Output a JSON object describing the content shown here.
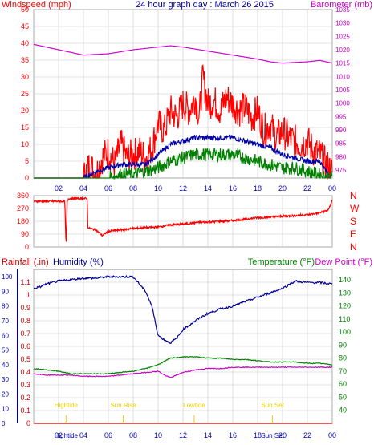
{
  "header": {
    "left_label": "Windspeed (mph)",
    "title": "24 hour graph day : March 26 2015",
    "right_label": "Barometer (mb)"
  },
  "colors": {
    "wind": "#ff0000",
    "wind_avg": "#0000aa",
    "wind_low": "#008000",
    "barometer": "#cc00cc",
    "rain": "#cc0000",
    "humidity": "#000099",
    "temperature": "#008000",
    "dew_point": "#cc00cc",
    "tide": "#e8d000",
    "axis_time": "#0000aa",
    "grid": "#c8c8c8"
  },
  "chart_data": [
    {
      "type": "line",
      "name": "wind-and-barometer",
      "x_ticks": [
        "02",
        "04",
        "06",
        "08",
        "10",
        "12",
        "14",
        "16",
        "18",
        "20",
        "22",
        "00"
      ],
      "y_left": {
        "label": "Windspeed (mph)",
        "range": [
          0,
          50
        ],
        "ticks": [
          "0",
          "5",
          "10",
          "15",
          "20",
          "25",
          "30",
          "35",
          "40",
          "45",
          "50"
        ]
      },
      "y_right": {
        "label": "Barometer (mb)",
        "range": [
          972,
          1035
        ],
        "ticks": [
          "975",
          "980",
          "985",
          "990",
          "995",
          "1000",
          "1005",
          "1010",
          "1015",
          "1020",
          "1025",
          "1030",
          "1035"
        ]
      },
      "series": [
        {
          "role": "barometer",
          "axis": "right",
          "x": [
            0,
            2,
            4,
            6,
            8,
            10,
            11,
            12,
            14,
            16,
            18,
            19,
            20,
            22,
            23,
            24
          ],
          "y": [
            1022,
            1020,
            1018,
            1018.5,
            1020,
            1021,
            1021.5,
            1021,
            1019.5,
            1018,
            1016.5,
            1015.5,
            1015,
            1015.5,
            1016,
            1015
          ]
        },
        {
          "role": "gust",
          "axis": "left",
          "x": [
            0,
            3,
            4,
            4.5,
            5,
            5.5,
            6,
            6.5,
            7,
            7.5,
            8,
            8.5,
            9,
            9.5,
            10,
            10.5,
            11,
            11.5,
            12,
            12.5,
            13,
            13.3,
            13.6,
            14,
            14.5,
            15,
            15.5,
            16,
            16.5,
            17,
            17.5,
            18,
            18.5,
            19,
            19.5,
            20,
            20.5,
            21,
            21.5,
            22,
            22.5,
            23,
            23.5,
            24
          ],
          "y": [
            0,
            0,
            0,
            4,
            1,
            6,
            8,
            4,
            10,
            6,
            7,
            8,
            6,
            9,
            16,
            14,
            20,
            18,
            22,
            20,
            24,
            18,
            30,
            22,
            23,
            20,
            24,
            22,
            20,
            21,
            18,
            20,
            14,
            16,
            12,
            14,
            12,
            11,
            10,
            11,
            8,
            7,
            4,
            2
          ]
        },
        {
          "role": "average",
          "axis": "left",
          "x": [
            0,
            4,
            4.5,
            5,
            6,
            7,
            8,
            9,
            10,
            11,
            12,
            13,
            14,
            15,
            16,
            17,
            18,
            19,
            20,
            21,
            22,
            23,
            23.5,
            24
          ],
          "y": [
            0,
            0,
            1,
            2,
            3,
            4,
            4,
            4,
            7,
            10,
            11,
            12,
            12,
            12,
            12,
            11,
            10,
            9,
            7,
            6,
            5,
            5,
            2,
            0
          ]
        },
        {
          "role": "low",
          "axis": "left",
          "x": [
            0,
            6,
            7,
            8,
            9,
            10,
            11,
            12,
            13,
            14,
            15,
            16,
            17,
            18,
            19,
            20,
            21,
            22,
            23,
            24
          ],
          "y": [
            0,
            0,
            1,
            1,
            2,
            3,
            5,
            6,
            7,
            7,
            7,
            7,
            6,
            5,
            4,
            3,
            3,
            2,
            1,
            0
          ]
        }
      ]
    },
    {
      "type": "line",
      "name": "wind-direction",
      "x_ticks": [
        "02",
        "04",
        "06",
        "08",
        "10",
        "12",
        "14",
        "16",
        "18",
        "20",
        "22",
        "00"
      ],
      "y_left": {
        "range": [
          0,
          360
        ],
        "ticks": [
          "0",
          "90",
          "180",
          "270",
          "360"
        ]
      },
      "y_right_labels": [
        "N",
        "W",
        "S",
        "E",
        "N"
      ],
      "series": [
        {
          "role": "direction",
          "x": [
            0,
            2.5,
            2.6,
            2.7,
            2.8,
            4.3,
            4.35,
            4.5,
            5,
            5.5,
            6,
            7,
            8,
            9,
            10,
            11,
            12,
            13,
            14,
            15,
            16,
            17,
            18,
            19,
            20,
            21,
            22,
            23,
            23.7,
            24
          ],
          "y": [
            320,
            320,
            0,
            320,
            340,
            340,
            140,
            130,
            120,
            80,
            110,
            120,
            130,
            135,
            140,
            155,
            160,
            170,
            175,
            180,
            185,
            195,
            205,
            210,
            215,
            220,
            225,
            240,
            260,
            330
          ]
        }
      ]
    },
    {
      "type": "line",
      "name": "rain-humidity-temperature",
      "header": {
        "rain": "Rainfall (.in)",
        "humidity": "Humidity (%)",
        "temperature": "Temperature (°F)",
        "dew_point": "Dew Point (°F)"
      },
      "x_ticks": [
        "02",
        "04",
        "06",
        "08",
        "10",
        "12",
        "14",
        "16",
        "18",
        "20",
        "22",
        "00"
      ],
      "y_rain": {
        "range": [
          0,
          1.2
        ],
        "ticks": [
          "0",
          "0.1",
          "0.2",
          "0.3",
          "0.4",
          "0.5",
          "0.6",
          "0.7",
          "0.8",
          "0.9",
          "1",
          "1.1"
        ]
      },
      "y_humidity": {
        "range": [
          0,
          105
        ],
        "ticks": [
          "0",
          "10",
          "20",
          "30",
          "40",
          "50",
          "60",
          "70",
          "80",
          "90",
          "100"
        ]
      },
      "y_temp": {
        "range": [
          30,
          148
        ],
        "ticks": [
          "40",
          "50",
          "60",
          "70",
          "80",
          "90",
          "100",
          "110",
          "120",
          "130",
          "140"
        ]
      },
      "series": [
        {
          "role": "humidity",
          "x": [
            0,
            0.5,
            1,
            2,
            3,
            4,
            5,
            6,
            7,
            8,
            9,
            9.5,
            10,
            10.5,
            11,
            11.5,
            12,
            13,
            14,
            15,
            16,
            17,
            18,
            19,
            20,
            21,
            22,
            23,
            24
          ],
          "y": [
            92,
            93,
            95,
            97,
            98,
            99,
            99,
            100,
            100,
            100,
            90,
            80,
            60,
            57,
            55,
            58,
            64,
            70,
            75,
            78,
            80,
            83,
            86,
            89,
            92,
            97,
            96,
            96,
            95
          ]
        },
        {
          "role": "temperature",
          "x": [
            0,
            1,
            2,
            3,
            4,
            5,
            6,
            7,
            8,
            9,
            10,
            11,
            12,
            13,
            14,
            15,
            16,
            17,
            18,
            19,
            20,
            21,
            22,
            23,
            24
          ],
          "y": [
            72,
            71,
            70,
            68,
            68,
            68,
            68,
            69,
            70,
            72,
            75,
            80,
            81,
            81,
            80,
            80,
            79,
            79,
            78,
            77,
            77,
            77,
            76,
            76,
            75
          ]
        },
        {
          "role": "dew_point",
          "x": [
            0,
            1,
            2,
            3,
            4,
            5,
            6,
            7,
            8,
            9,
            10,
            10.5,
            11,
            11.5,
            12,
            13,
            14,
            15,
            16,
            17,
            18,
            19,
            20,
            21,
            22,
            23,
            24
          ],
          "y": [
            68,
            67,
            67,
            67,
            66,
            66,
            66,
            67,
            68,
            69,
            70,
            67,
            65,
            67,
            69,
            71,
            72,
            72,
            73,
            73,
            73,
            73,
            73,
            73,
            73,
            73,
            73
          ]
        },
        {
          "role": "rain",
          "x": [
            0,
            24
          ],
          "y": [
            0,
            0
          ]
        }
      ],
      "tide_events": [
        {
          "label": "Hightide",
          "time": 2.6
        },
        {
          "label": "Sun Rise",
          "time": 7.2
        },
        {
          "label": "Lowtide",
          "time": 12.9
        },
        {
          "label": "Sun Set",
          "time": 19.2
        },
        {
          "label": "Hightide",
          "time": 2.6
        },
        {
          "label": "Sun Set",
          "time": 19.2
        }
      ],
      "tide_label_rows": [
        "high",
        "high",
        "high",
        "high",
        "low",
        "low"
      ]
    }
  ]
}
